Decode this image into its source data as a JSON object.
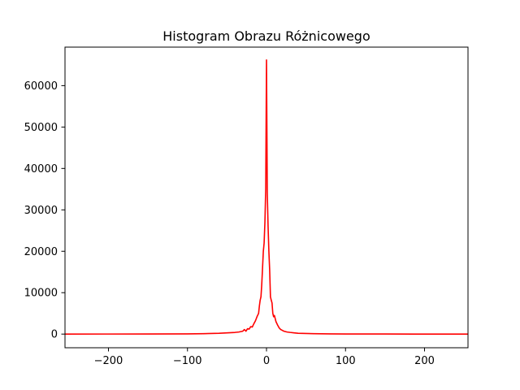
{
  "chart_data": {
    "type": "line",
    "title": "Histogram Obrazu Różnicowego",
    "xlabel": "",
    "ylabel": "",
    "xlim": [
      -255,
      255
    ],
    "ylim": [
      -3300,
      69300
    ],
    "x_ticks": [
      -200,
      -100,
      0,
      100,
      200
    ],
    "x_tick_labels": [
      "−200",
      "−100",
      "0",
      "100",
      "200"
    ],
    "y_ticks": [
      0,
      10000,
      20000,
      30000,
      40000,
      50000,
      60000
    ],
    "y_tick_labels": [
      "0",
      "10000",
      "20000",
      "30000",
      "40000",
      "50000",
      "60000"
    ],
    "grid": false,
    "legend": "none",
    "line_color": "#ff0000",
    "series": [
      {
        "x": [
          -255,
          -200,
          -150,
          -100,
          -80,
          -60,
          -50,
          -40,
          -35,
          -30,
          -28,
          -26,
          -24,
          -22,
          -20,
          -18,
          -16,
          -14,
          -12,
          -10,
          -9,
          -8,
          -7,
          -6,
          -5,
          -4,
          -3,
          -2,
          -1,
          0,
          1,
          2,
          3,
          4,
          5,
          6,
          7,
          8,
          9,
          10,
          12,
          14,
          16,
          18,
          20,
          22,
          24,
          26,
          28,
          30,
          35,
          40,
          50,
          60,
          80,
          100,
          150,
          200,
          255
        ],
        "values": [
          0,
          10,
          20,
          50,
          100,
          200,
          300,
          400,
          500,
          700,
          1100,
          700,
          1300,
          1200,
          1800,
          1700,
          2500,
          3200,
          4200,
          5000,
          6800,
          8200,
          9000,
          12000,
          16000,
          20000,
          22000,
          27000,
          35000,
          66200,
          34000,
          26000,
          20000,
          15500,
          9000,
          8200,
          7500,
          5000,
          4200,
          4500,
          3000,
          2200,
          1500,
          1100,
          900,
          700,
          600,
          500,
          450,
          400,
          300,
          200,
          150,
          100,
          50,
          30,
          15,
          5,
          0
        ]
      }
    ]
  }
}
